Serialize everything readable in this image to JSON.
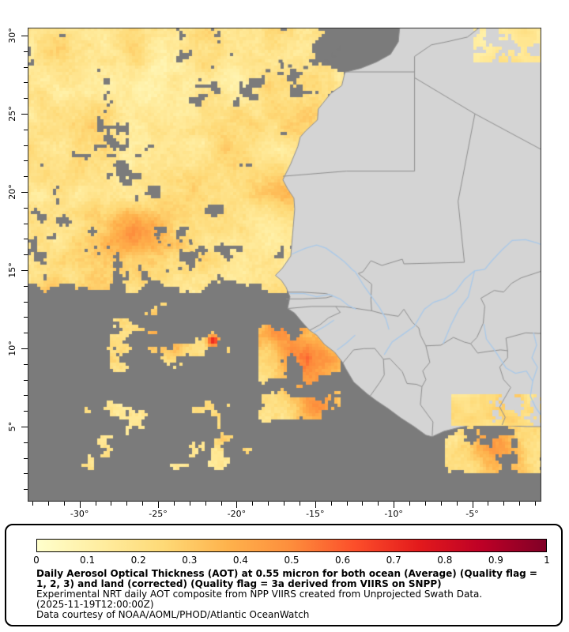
{
  "figure": {
    "axes": {
      "lat": {
        "min": 0.2,
        "max": 30.5,
        "major_ticks": [
          {
            "value": 30,
            "label": "30°"
          },
          {
            "value": 25,
            "label": "25°"
          },
          {
            "value": 20,
            "label": "20°"
          },
          {
            "value": 15,
            "label": "15°"
          },
          {
            "value": 10,
            "label": "10°"
          },
          {
            "value": 5,
            "label": "5°"
          }
        ]
      },
      "lon": {
        "min": -33.3,
        "max": -0.6,
        "major_ticks": [
          {
            "value": -30,
            "label": "-30°"
          },
          {
            "value": -25,
            "label": "-25°"
          },
          {
            "value": -20,
            "label": "-20°"
          },
          {
            "value": -15,
            "label": "-15°"
          },
          {
            "value": -10,
            "label": "-10°"
          },
          {
            "value": -5,
            "label": "-5°"
          }
        ]
      }
    },
    "colors": {
      "ocean_no_data": "#7b7b7b",
      "land": "#d4d4d4",
      "country_border": "#8f8f8f",
      "coast": "#8f8f8f",
      "river": "#a9c9e9",
      "frame": "#2f2f2f"
    }
  },
  "legend": {
    "colorbar": {
      "stops": [
        "#ffffcc",
        "#ffeda0",
        "#fed976",
        "#feb24c",
        "#fd8d3c",
        "#fc4e2a",
        "#e31a1c",
        "#bd0026",
        "#800026"
      ],
      "tick_labels": [
        "0",
        "0.1",
        "0.2",
        "0.3",
        "0.4",
        "0.5",
        "0.6",
        "0.7",
        "0.8",
        "0.9",
        "1"
      ]
    },
    "title": "Daily Aerosol Optical Thickness (AOT) at 0.55 micron for both ocean (Average) (Quality flag = 1, 2, 3) and land (corrected) (Quality flag = 3a derived from VIIRS on SNPP)",
    "subtitle": "Experimental NRT daily AOT composite from NPP VIIRS created from Unprojected Swath Data.",
    "timestamp": "(2025-11-19T12:00:00Z)",
    "credit": "Data courtesy of NOAA/AOML/PHOD/Atlantic OceanWatch"
  }
}
